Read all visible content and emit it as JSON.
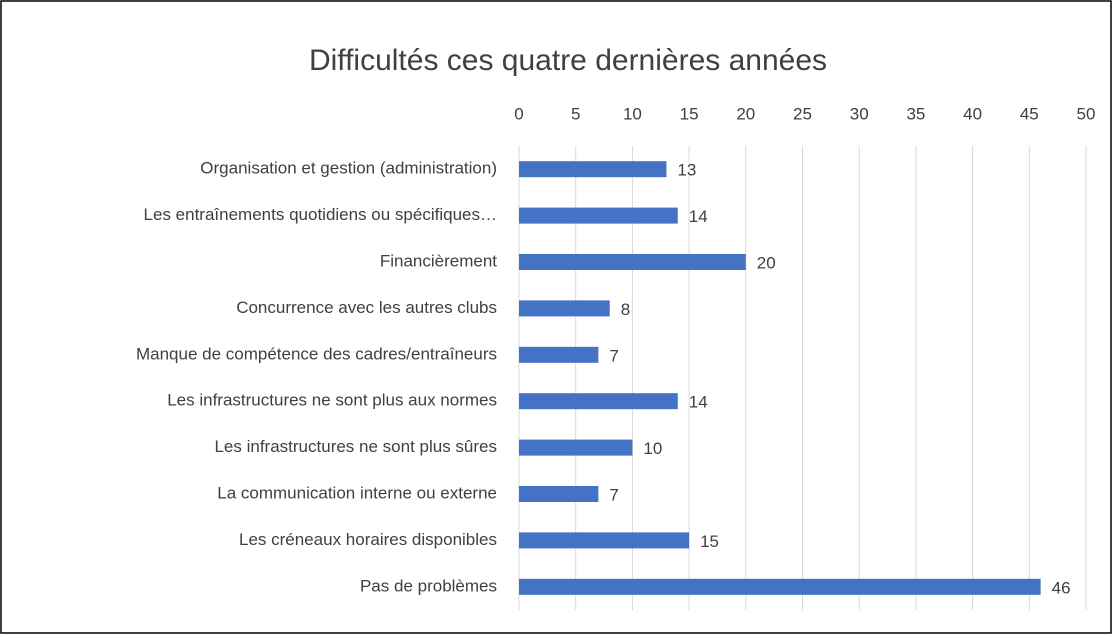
{
  "chart_data": {
    "type": "bar",
    "orientation": "horizontal",
    "title": "Difficultés ces quatre dernières années",
    "categories": [
      "Organisation et gestion (administration)",
      "Les entraînements quotidiens ou spécifiques…",
      "Financièrement",
      "Concurrence avec les autres clubs",
      "Manque de compétence des cadres/entraîneurs",
      "Les infrastructures ne sont plus aux normes",
      "Les infrastructures ne sont plus sûres",
      "La communication interne ou externe",
      "Les créneaux horaires disponibles",
      "Pas de problèmes"
    ],
    "values": [
      13,
      14,
      20,
      8,
      7,
      14,
      10,
      7,
      15,
      46
    ],
    "color": "#4472c4",
    "xlim": [
      0,
      50
    ],
    "xticks": [
      0,
      5,
      10,
      15,
      20,
      25,
      30,
      35,
      40,
      45,
      50
    ],
    "grid": true
  }
}
